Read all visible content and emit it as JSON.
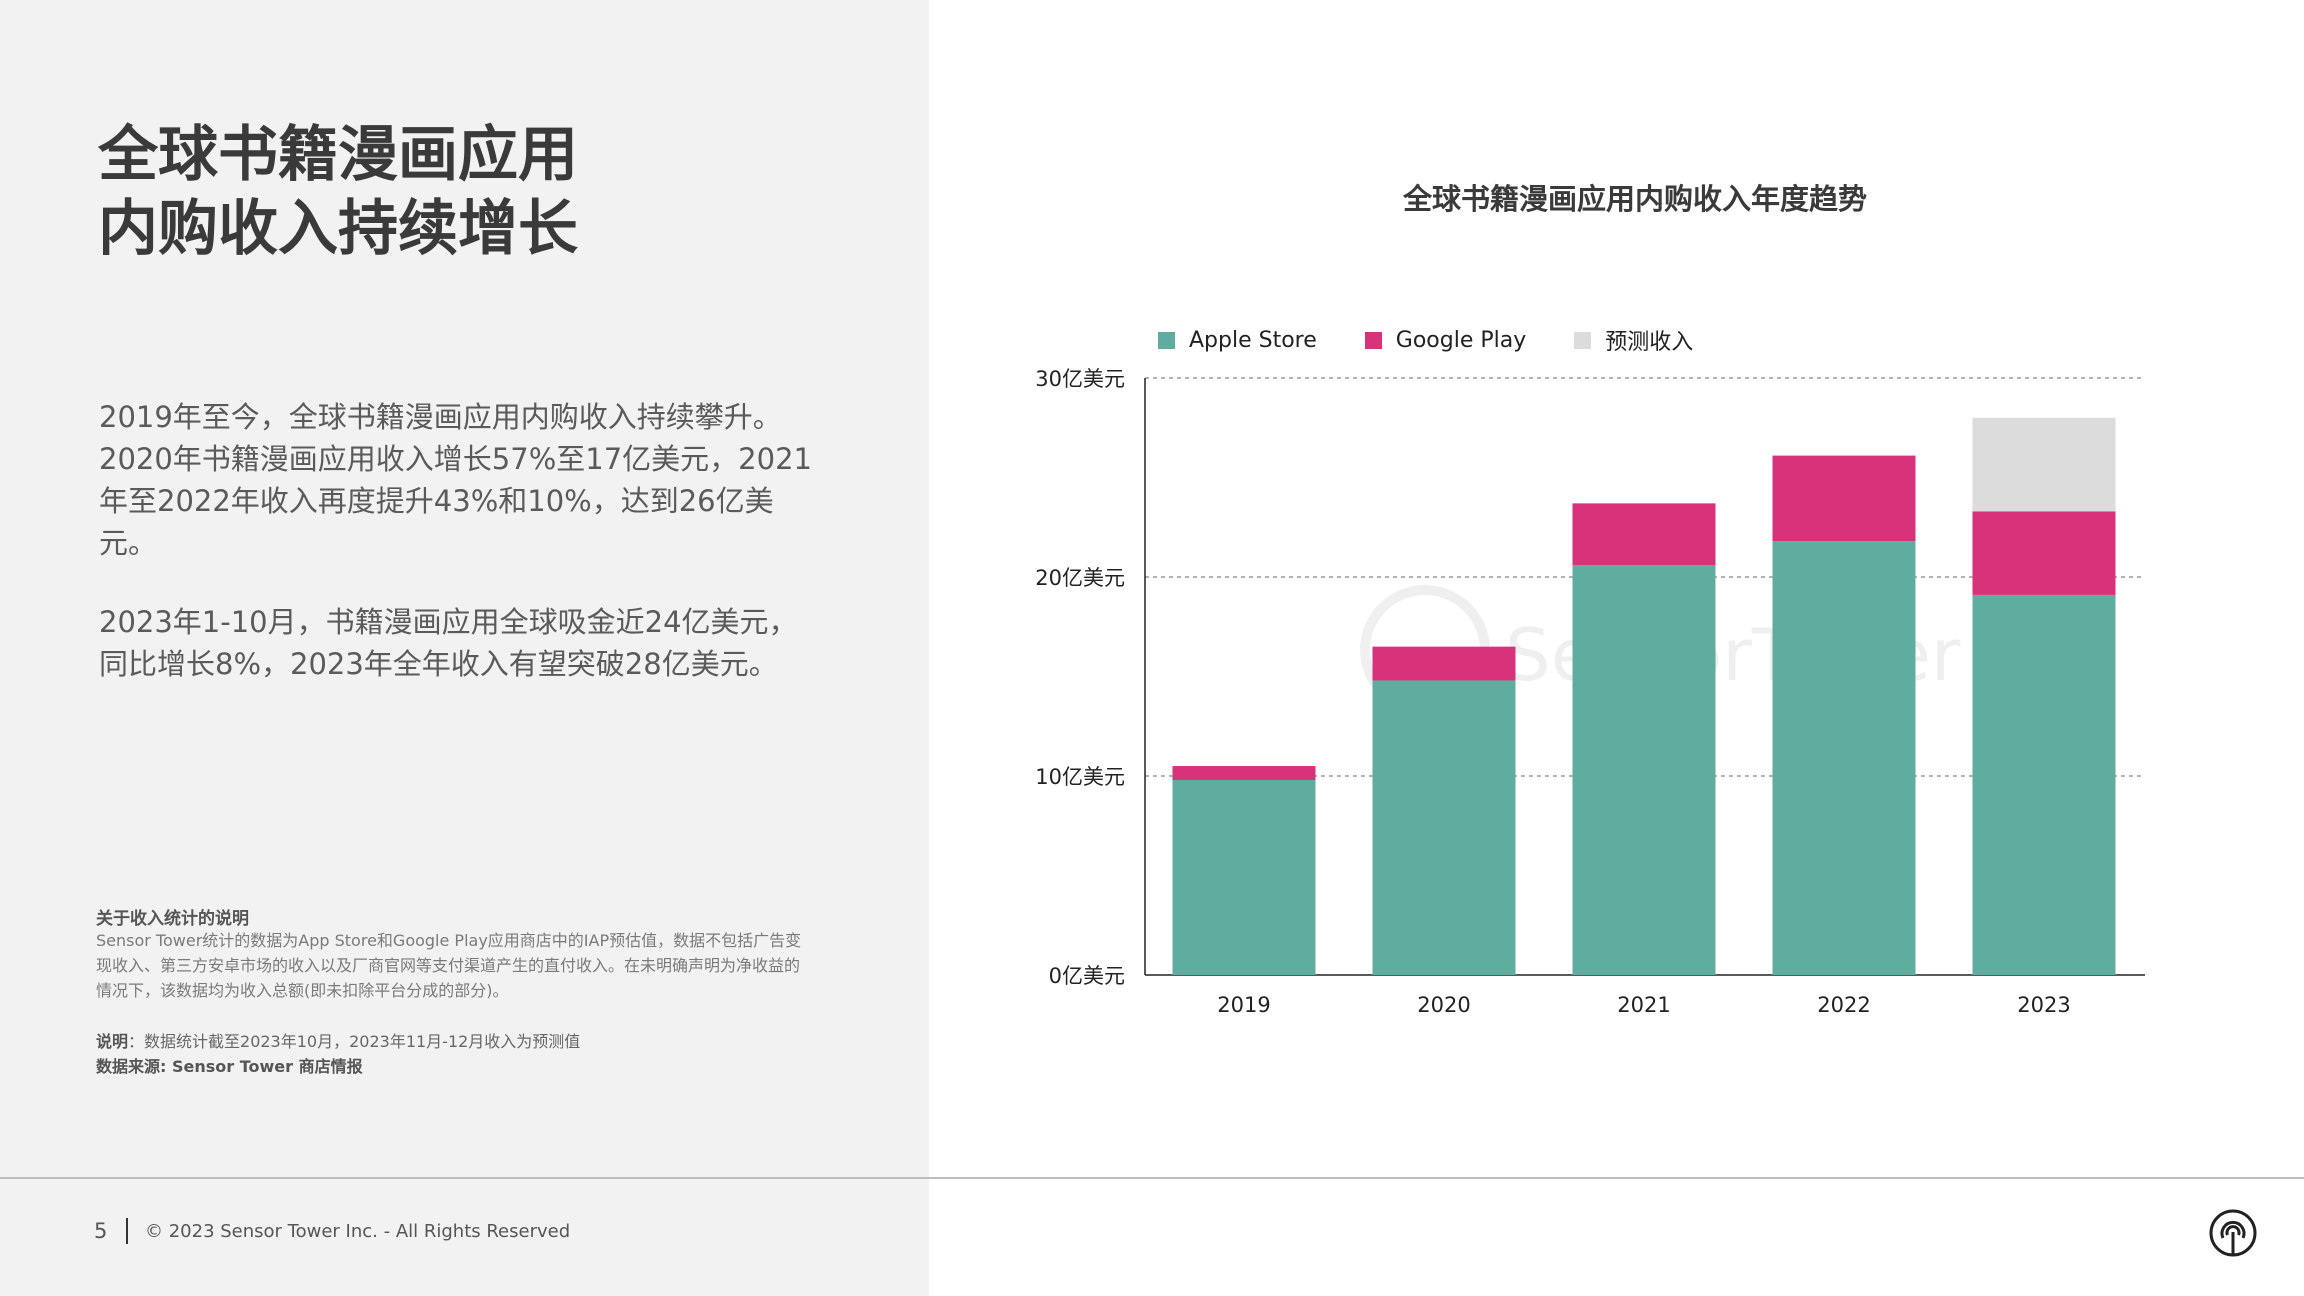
{
  "headline": {
    "line1": "全球书籍漫画应用",
    "line2": "内购收入持续增长"
  },
  "paragraphs": [
    "2019年至今，全球书籍漫画应用内购收入持续攀升。2020年书籍漫画应用收入增长57%至17亿美元，2021年至2022年收入再度提升43%和10%，达到26亿美元。",
    "2023年1-10月，书籍漫画应用全球吸金近24亿美元，同比增长8%，2023年全年收入有望突破28亿美元。"
  ],
  "notes": {
    "title": "关于收入统计的说明",
    "body": "Sensor Tower统计的数据为App Store和Google Play应用商店中的IAP预估值，数据不包括广告变现收入、第三方安卓市场的收入以及厂商官网等支付渠道产生的直付收入。在未明确声明为净收益的情况下，该数据均为收入总额(即未扣除平台分成的部分)。",
    "caption_label": "说明",
    "caption_text": "：数据统计截至2023年10月，2023年11月-12月收入为预测值",
    "source": "数据来源: Sensor Tower 商店情报"
  },
  "footer": {
    "page_number": "5",
    "copyright": "© 2023 Sensor Tower Inc. - All Rights Reserved"
  },
  "colors": {
    "apple": "#5fad9e",
    "google": "#d6337a",
    "forecast": "#dcdcdc",
    "left_panel": "#f2f2f2"
  },
  "icons": {
    "logo": "sensor-tower-logo-icon"
  },
  "watermark": "SensorTower",
  "chart_data": {
    "type": "bar",
    "stacked": true,
    "title": "全球书籍漫画应用内购收入年度趋势",
    "categories": [
      "2019",
      "2020",
      "2021",
      "2022",
      "2023"
    ],
    "series": [
      {
        "name": "Apple Store",
        "color": "#5fad9e",
        "values": [
          9.8,
          14.8,
          20.6,
          21.8,
          19.1
        ]
      },
      {
        "name": "Google Play",
        "color": "#d6337a",
        "values": [
          0.7,
          1.7,
          3.1,
          4.3,
          4.2
        ]
      },
      {
        "name": "预测收入",
        "color": "#dcdcdc",
        "values": [
          0,
          0,
          0,
          0,
          4.7
        ]
      }
    ],
    "ylim": [
      0,
      30
    ],
    "yticks": [
      0,
      10,
      20,
      30
    ],
    "ytick_labels": [
      "0亿美元",
      "10亿美元",
      "20亿美元",
      "30亿美元"
    ],
    "grid": "dashed horizontal",
    "legend_position": "top-left"
  }
}
